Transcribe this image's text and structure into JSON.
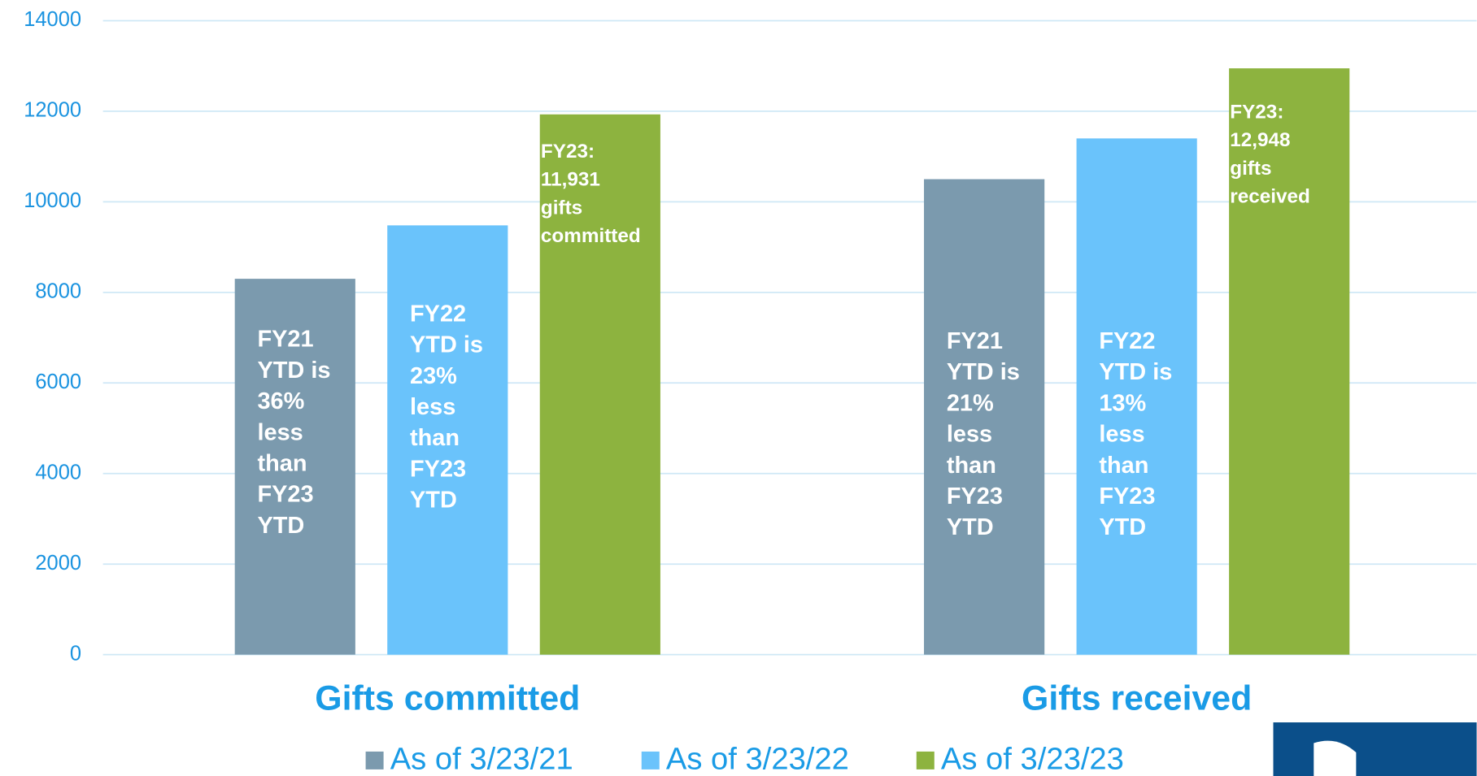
{
  "chart_data": {
    "type": "bar",
    "categories": [
      "Gifts committed",
      "Gifts received"
    ],
    "series": [
      {
        "name": "As of 3/23/21",
        "color": "#7b9aae",
        "values": [
          8300,
          10500
        ],
        "labels": [
          [
            "FY21",
            "YTD is",
            "36%",
            "less",
            "than",
            "FY23",
            "YTD"
          ],
          [
            "FY21",
            "YTD is",
            "21%",
            "less",
            "than",
            "FY23",
            "YTD"
          ]
        ]
      },
      {
        "name": "As of 3/23/22",
        "color": "#6ac3fb",
        "values": [
          9480,
          11400
        ],
        "labels": [
          [
            "FY22",
            "YTD is",
            "23%",
            "less",
            "than",
            "FY23",
            "YTD"
          ],
          [
            "FY22",
            "YTD is",
            "13%",
            "less",
            "than",
            "FY23",
            "YTD"
          ]
        ]
      },
      {
        "name": "As of 3/23/23",
        "color": "#8db33f",
        "values": [
          11931,
          12948
        ],
        "labels": [
          [
            "FY23:",
            "11,931",
            "gifts",
            "committed"
          ],
          [
            "FY23:",
            "12,948",
            "gifts",
            "received"
          ]
        ]
      }
    ],
    "ylim": [
      0,
      14000
    ],
    "yticks": [
      0,
      2000,
      4000,
      6000,
      8000,
      10000,
      12000,
      14000
    ],
    "grid": true,
    "legend": "bottom"
  }
}
